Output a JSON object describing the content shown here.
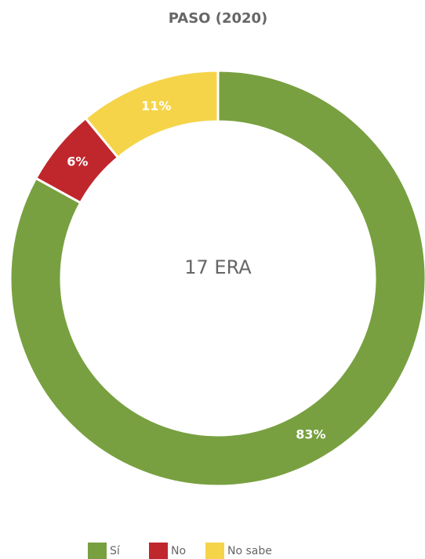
{
  "chart_data": {
    "type": "donut",
    "title": "PASO (2020)",
    "center_label": "17 ERA",
    "categories": [
      "Sí",
      "No",
      "No sabe"
    ],
    "values": [
      83,
      6,
      11
    ],
    "value_labels": [
      "83%",
      "6%",
      "11%"
    ],
    "colors": [
      "#78a040",
      "#c0272d",
      "#f5d44a"
    ]
  }
}
